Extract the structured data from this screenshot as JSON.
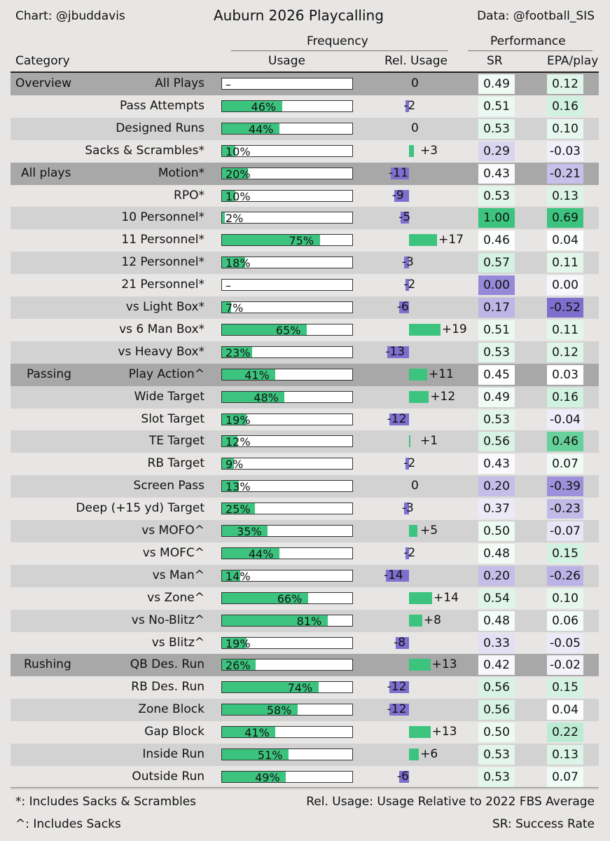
{
  "header": {
    "credit_left": "Chart: @jbuddavis",
    "title": "Auburn 2026 Playcalling",
    "credit_right": "Data: @football_SIS",
    "group_frequency": "Frequency",
    "group_performance": "Performance",
    "col_category": "Category",
    "col_usage": "Usage",
    "col_rel_usage": "Rel. Usage",
    "col_sr": "SR",
    "col_epa": "EPA/play"
  },
  "footer": {
    "note_star": "*: Includes Sacks & Scrambles",
    "note_caret": "^: Includes Sacks",
    "note_rel": "Rel. Usage: Usage Relative to 2022 FBS Average",
    "note_sr": "SR: Success Rate"
  },
  "colors": {
    "usage_bar": "#3cc47f",
    "rel_bar_positive": "#3cc47f",
    "rel_bar_negative": "#7e6fcf",
    "section_row": "#a9a8a8",
    "row_dark": "#d3d2d2",
    "row_light": "#e8e6e5"
  },
  "chart_data": {
    "type": "table",
    "title": "Auburn 2026 Playcalling",
    "columns": [
      "Category",
      "Usage",
      "Rel. Usage",
      "SR",
      "EPA/play"
    ],
    "rows": [
      {
        "section": "Overview",
        "label": "All Plays",
        "usage": null,
        "usage_text": "–",
        "rel": 0,
        "rel_text": "0",
        "sr": "0.49",
        "epa": "0.12"
      },
      {
        "section": "",
        "label": "Pass Attempts",
        "usage": 46,
        "usage_text": "46%",
        "rel": -2,
        "rel_text": "-2",
        "sr": "0.51",
        "epa": "0.16"
      },
      {
        "section": "",
        "label": "Designed Runs",
        "usage": 44,
        "usage_text": "44%",
        "rel": 0,
        "rel_text": "0",
        "sr": "0.53",
        "epa": "0.10"
      },
      {
        "section": "",
        "label": "Sacks & Scrambles*",
        "usage": 10,
        "usage_text": "10%",
        "rel": 3,
        "rel_text": "+3",
        "sr": "0.29",
        "epa": "-0.03"
      },
      {
        "section": "All plays",
        "label": "Motion*",
        "usage": 20,
        "usage_text": "20%",
        "rel": -11,
        "rel_text": "-11",
        "sr": "0.43",
        "epa": "-0.21"
      },
      {
        "section": "",
        "label": "RPO*",
        "usage": 10,
        "usage_text": "10%",
        "rel": -9,
        "rel_text": "-9",
        "sr": "0.53",
        "epa": "0.13"
      },
      {
        "section": "",
        "label": "10 Personnel*",
        "usage": 2,
        "usage_text": "2%",
        "rel": -5,
        "rel_text": "-5",
        "sr": "1.00",
        "epa": "0.69"
      },
      {
        "section": "",
        "label": "11 Personnel*",
        "usage": 75,
        "usage_text": "75%",
        "rel": 17,
        "rel_text": "+17",
        "sr": "0.46",
        "epa": "0.04"
      },
      {
        "section": "",
        "label": "12 Personnel*",
        "usage": 18,
        "usage_text": "18%",
        "rel": -3,
        "rel_text": "-3",
        "sr": "0.57",
        "epa": "0.11"
      },
      {
        "section": "",
        "label": "21 Personnel*",
        "usage": null,
        "usage_text": "–",
        "rel": -2,
        "rel_text": "-2",
        "sr": "0.00",
        "epa": "0.00"
      },
      {
        "section": "",
        "label": "vs Light Box*",
        "usage": 7,
        "usage_text": "7%",
        "rel": -6,
        "rel_text": "-6",
        "sr": "0.17",
        "epa": "-0.52"
      },
      {
        "section": "",
        "label": "vs 6 Man Box*",
        "usage": 65,
        "usage_text": "65%",
        "rel": 19,
        "rel_text": "+19",
        "sr": "0.51",
        "epa": "0.11"
      },
      {
        "section": "",
        "label": "vs Heavy Box*",
        "usage": 23,
        "usage_text": "23%",
        "rel": -13,
        "rel_text": "-13",
        "sr": "0.53",
        "epa": "0.12"
      },
      {
        "section": "Passing",
        "label": "Play Action^",
        "usage": 41,
        "usage_text": "41%",
        "rel": 11,
        "rel_text": "+11",
        "sr": "0.45",
        "epa": "0.03"
      },
      {
        "section": "",
        "label": "Wide Target",
        "usage": 48,
        "usage_text": "48%",
        "rel": 12,
        "rel_text": "+12",
        "sr": "0.49",
        "epa": "0.16"
      },
      {
        "section": "",
        "label": "Slot Target",
        "usage": 19,
        "usage_text": "19%",
        "rel": -12,
        "rel_text": "-12",
        "sr": "0.53",
        "epa": "-0.04"
      },
      {
        "section": "",
        "label": "TE Target",
        "usage": 12,
        "usage_text": "12%",
        "rel": 1,
        "rel_text": "+1",
        "sr": "0.56",
        "epa": "0.46"
      },
      {
        "section": "",
        "label": "RB Target",
        "usage": 9,
        "usage_text": "9%",
        "rel": -2,
        "rel_text": "-2",
        "sr": "0.43",
        "epa": "0.07"
      },
      {
        "section": "",
        "label": "Screen Pass",
        "usage": 13,
        "usage_text": "13%",
        "rel": 0,
        "rel_text": "0",
        "sr": "0.20",
        "epa": "-0.39"
      },
      {
        "section": "",
        "label": "Deep (+15 yd) Target",
        "usage": 25,
        "usage_text": "25%",
        "rel": -3,
        "rel_text": "-3",
        "sr": "0.37",
        "epa": "-0.23"
      },
      {
        "section": "",
        "label": "vs MOFO^",
        "usage": 35,
        "usage_text": "35%",
        "rel": 5,
        "rel_text": "+5",
        "sr": "0.50",
        "epa": "-0.07"
      },
      {
        "section": "",
        "label": "vs MOFC^",
        "usage": 44,
        "usage_text": "44%",
        "rel": -2,
        "rel_text": "-2",
        "sr": "0.48",
        "epa": "0.15"
      },
      {
        "section": "",
        "label": "vs Man^",
        "usage": 14,
        "usage_text": "14%",
        "rel": -14,
        "rel_text": "-14",
        "sr": "0.20",
        "epa": "-0.26"
      },
      {
        "section": "",
        "label": "vs Zone^",
        "usage": 66,
        "usage_text": "66%",
        "rel": 14,
        "rel_text": "+14",
        "sr": "0.54",
        "epa": "0.10"
      },
      {
        "section": "",
        "label": "vs No-Blitz^",
        "usage": 81,
        "usage_text": "81%",
        "rel": 8,
        "rel_text": "+8",
        "sr": "0.48",
        "epa": "0.06"
      },
      {
        "section": "",
        "label": "vs Blitz^",
        "usage": 19,
        "usage_text": "19%",
        "rel": -8,
        "rel_text": "-8",
        "sr": "0.33",
        "epa": "-0.05"
      },
      {
        "section": "Rushing",
        "label": "QB Des. Run",
        "usage": 26,
        "usage_text": "26%",
        "rel": 13,
        "rel_text": "+13",
        "sr": "0.42",
        "epa": "-0.02"
      },
      {
        "section": "",
        "label": "RB Des. Run",
        "usage": 74,
        "usage_text": "74%",
        "rel": -12,
        "rel_text": "-12",
        "sr": "0.56",
        "epa": "0.15"
      },
      {
        "section": "",
        "label": "Zone Block",
        "usage": 58,
        "usage_text": "58%",
        "rel": -12,
        "rel_text": "-12",
        "sr": "0.56",
        "epa": "0.04"
      },
      {
        "section": "",
        "label": "Gap Block",
        "usage": 41,
        "usage_text": "41%",
        "rel": 13,
        "rel_text": "+13",
        "sr": "0.50",
        "epa": "0.22"
      },
      {
        "section": "",
        "label": "Inside Run",
        "usage": 51,
        "usage_text": "51%",
        "rel": 6,
        "rel_text": "+6",
        "sr": "0.53",
        "epa": "0.13"
      },
      {
        "section": "",
        "label": "Outside Run",
        "usage": 49,
        "usage_text": "49%",
        "rel": -6,
        "rel_text": "-6",
        "sr": "0.53",
        "epa": "0.07"
      }
    ]
  }
}
